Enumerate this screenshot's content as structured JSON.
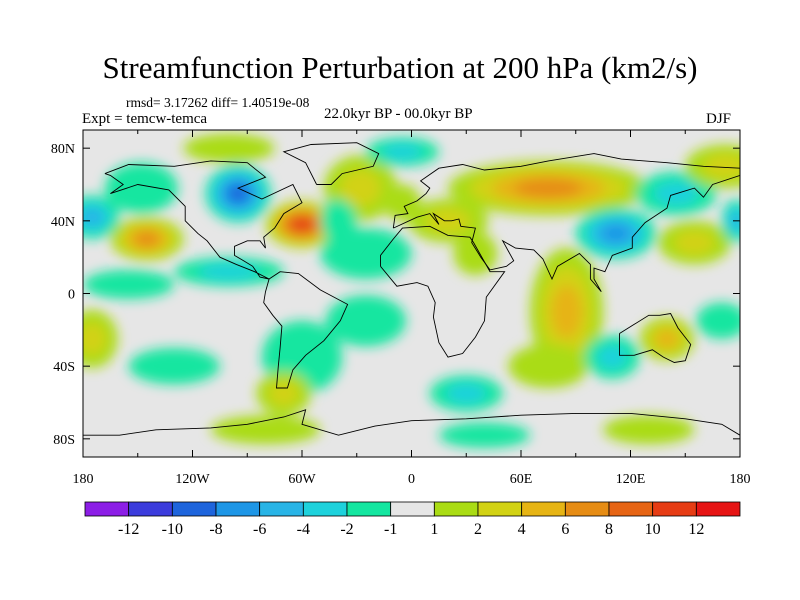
{
  "chart_data": {
    "type": "heatmap",
    "title": "Streamfunction Perturbation at 200 hPa (km2/s)",
    "stats": "rmsd= 3.17262 diff= 1.40519e-08",
    "left_label": "Expt = temcw-temca",
    "center_label": "22.0kyr BP - 00.0kyr BP",
    "right_label": "DJF",
    "x_ticks": [
      "180",
      "120W",
      "60W",
      "0",
      "60E",
      "120E",
      "180"
    ],
    "y_ticks": [
      "80N",
      "40N",
      "0",
      "40S",
      "80S"
    ],
    "xlim": [
      -180,
      180
    ],
    "ylim": [
      -90,
      90
    ],
    "colorbar": {
      "labels": [
        "-12",
        "-10",
        "-8",
        "-6",
        "-4",
        "-2",
        "-1",
        "1",
        "2",
        "4",
        "6",
        "8",
        "10",
        "12"
      ],
      "colors": [
        "#8c1ee6",
        "#3c3cdc",
        "#1e64dc",
        "#1e96e6",
        "#28b4e6",
        "#1ed2dc",
        "#14e6a0",
        "#e6e6e6",
        "#aadc14",
        "#d2d214",
        "#e6b414",
        "#e68c14",
        "#e66414",
        "#e63c14",
        "#e61414"
      ]
    },
    "field_features": [
      {
        "lon": -95,
        "lat": 55,
        "value": -9,
        "rx": 18,
        "ry": 16
      },
      {
        "lon": -60,
        "lat": 38,
        "value": 12,
        "rx": 20,
        "ry": 13
      },
      {
        "lon": -145,
        "lat": 30,
        "value": 7,
        "rx": 20,
        "ry": 12
      },
      {
        "lon": -175,
        "lat": 42,
        "value": -6,
        "rx": 15,
        "ry": 12
      },
      {
        "lon": -148,
        "lat": 58,
        "value": -2,
        "rx": 20,
        "ry": 14
      },
      {
        "lon": -28,
        "lat": 58,
        "value": 3,
        "rx": 20,
        "ry": 18
      },
      {
        "lon": -5,
        "lat": 50,
        "value": 2,
        "rx": 10,
        "ry": 10
      },
      {
        "lon": -40,
        "lat": 40,
        "value": -2,
        "rx": 10,
        "ry": 12
      },
      {
        "lon": -5,
        "lat": 78,
        "value": -3,
        "rx": 20,
        "ry": 8
      },
      {
        "lon": 75,
        "lat": 58,
        "value": 8,
        "rx": 55,
        "ry": 15
      },
      {
        "lon": 20,
        "lat": 40,
        "value": 4,
        "rx": 22,
        "ry": 12
      },
      {
        "lon": 35,
        "lat": 22,
        "value": 2,
        "rx": 12,
        "ry": 12
      },
      {
        "lon": 112,
        "lat": 33,
        "value": -8,
        "rx": 22,
        "ry": 14
      },
      {
        "lon": 145,
        "lat": 55,
        "value": -3,
        "rx": 22,
        "ry": 12
      },
      {
        "lon": 172,
        "lat": 70,
        "value": 4,
        "rx": 22,
        "ry": 12
      },
      {
        "lon": 155,
        "lat": 28,
        "value": 3,
        "rx": 20,
        "ry": 12
      },
      {
        "lon": 178,
        "lat": 40,
        "value": -5,
        "rx": 8,
        "ry": 12
      },
      {
        "lon": -100,
        "lat": 12,
        "value": -3,
        "rx": 30,
        "ry": 8
      },
      {
        "lon": -155,
        "lat": 5,
        "value": -2,
        "rx": 25,
        "ry": 8
      },
      {
        "lon": -25,
        "lat": 22,
        "value": -2,
        "rx": 25,
        "ry": 14
      },
      {
        "lon": 85,
        "lat": -10,
        "value": 5,
        "rx": 20,
        "ry": 35
      },
      {
        "lon": 75,
        "lat": -40,
        "value": 2,
        "rx": 22,
        "ry": 12
      },
      {
        "lon": 140,
        "lat": -25,
        "value": 5,
        "rx": 15,
        "ry": 12
      },
      {
        "lon": 110,
        "lat": -35,
        "value": -3,
        "rx": 15,
        "ry": 12
      },
      {
        "lon": 170,
        "lat": -15,
        "value": -2,
        "rx": 14,
        "ry": 10
      },
      {
        "lon": -175,
        "lat": -25,
        "value": 3,
        "rx": 14,
        "ry": 16
      },
      {
        "lon": -130,
        "lat": -40,
        "value": -2,
        "rx": 25,
        "ry": 10
      },
      {
        "lon": -60,
        "lat": -35,
        "value": -2,
        "rx": 22,
        "ry": 20
      },
      {
        "lon": -70,
        "lat": -55,
        "value": 3,
        "rx": 15,
        "ry": 12
      },
      {
        "lon": -25,
        "lat": -15,
        "value": -2,
        "rx": 22,
        "ry": 14
      },
      {
        "lon": 30,
        "lat": -55,
        "value": -3,
        "rx": 20,
        "ry": 10
      },
      {
        "lon": -80,
        "lat": -75,
        "value": 2,
        "rx": 30,
        "ry": 8
      },
      {
        "lon": 130,
        "lat": -75,
        "value": 2,
        "rx": 25,
        "ry": 8
      },
      {
        "lon": 40,
        "lat": -78,
        "value": -2,
        "rx": 25,
        "ry": 7
      },
      {
        "lon": -100,
        "lat": 80,
        "value": 2,
        "rx": 25,
        "ry": 8
      }
    ],
    "grid": false,
    "legend": "bottom"
  }
}
